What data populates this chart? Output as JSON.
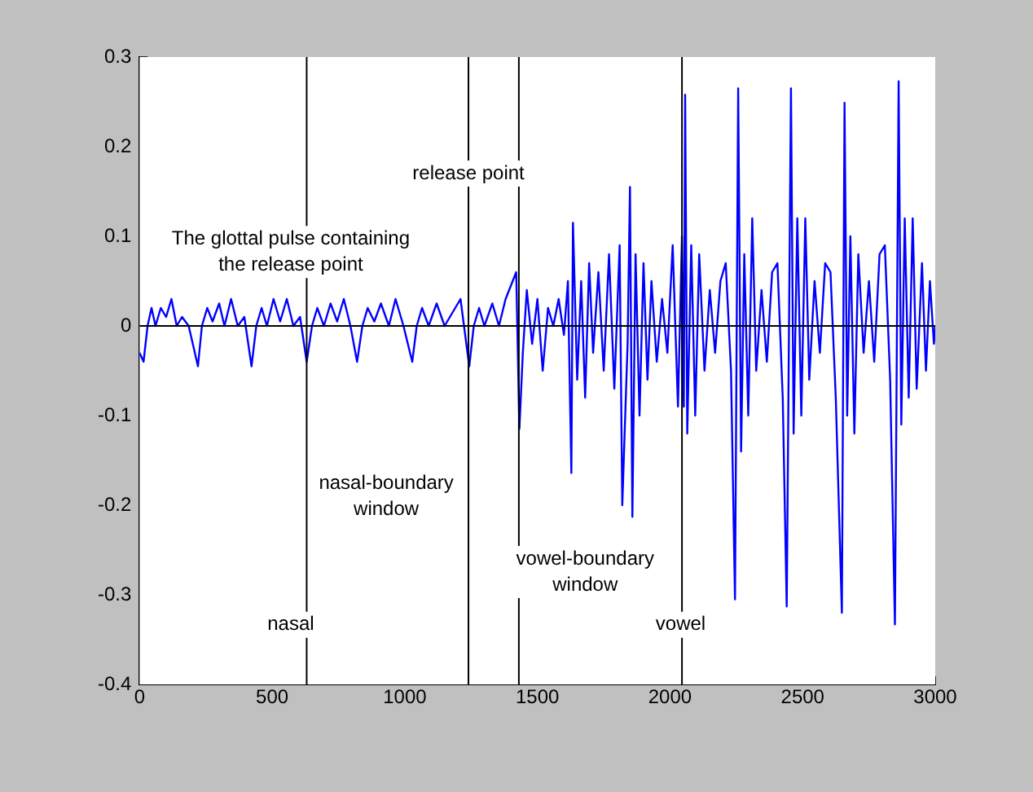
{
  "chart_data": {
    "type": "line",
    "xlim": [
      0,
      3000
    ],
    "ylim": [
      -0.4,
      0.3
    ],
    "xticks": [
      0,
      500,
      1000,
      1500,
      2000,
      2500,
      3000
    ],
    "yticks": [
      -0.4,
      -0.3,
      -0.2,
      -0.1,
      0,
      0.1,
      0.2,
      0.3
    ],
    "grid": false,
    "legend": false,
    "marker": "none",
    "line_style": "solid",
    "series": [
      {
        "color": "#0000ff",
        "x": [
          0,
          15,
          30,
          45,
          60,
          80,
          100,
          120,
          140,
          160,
          185,
          220,
          235,
          255,
          275,
          300,
          320,
          345,
          370,
          395,
          422,
          440,
          460,
          480,
          505,
          530,
          555,
          580,
          605,
          630,
          650,
          670,
          695,
          720,
          745,
          770,
          795,
          820,
          840,
          860,
          885,
          910,
          940,
          965,
          995,
          1028,
          1045,
          1065,
          1090,
          1120,
          1150,
          1180,
          1210,
          1243,
          1260,
          1280,
          1300,
          1330,
          1355,
          1380,
          1400,
          1420,
          1432,
          1445,
          1460,
          1480,
          1500,
          1520,
          1540,
          1560,
          1580,
          1600,
          1615,
          1628,
          1634,
          1650,
          1665,
          1680,
          1695,
          1710,
          1730,
          1750,
          1770,
          1790,
          1810,
          1820,
          1840,
          1849,
          1858,
          1870,
          1885,
          1900,
          1915,
          1930,
          1950,
          1970,
          1990,
          2010,
          2030,
          2045,
          2052,
          2057,
          2065,
          2080,
          2095,
          2110,
          2130,
          2150,
          2170,
          2190,
          2210,
          2230,
          2245,
          2257,
          2268,
          2280,
          2295,
          2310,
          2325,
          2345,
          2365,
          2385,
          2405,
          2425,
          2440,
          2456,
          2466,
          2480,
          2495,
          2510,
          2525,
          2545,
          2565,
          2585,
          2605,
          2625,
          2648,
          2658,
          2668,
          2680,
          2695,
          2710,
          2730,
          2750,
          2770,
          2790,
          2810,
          2830,
          2848,
          2862,
          2872,
          2885,
          2900,
          2915,
          2930,
          2950,
          2965,
          2980,
          2995,
          3000
        ],
        "values": [
          -0.03,
          -0.04,
          0.0,
          0.02,
          0.0,
          0.02,
          0.01,
          0.03,
          0.0,
          0.01,
          0.0,
          -0.045,
          0.0,
          0.02,
          0.005,
          0.025,
          0.0,
          0.03,
          0.0,
          0.01,
          -0.045,
          0.0,
          0.02,
          0.0,
          0.03,
          0.005,
          0.03,
          0.0,
          0.01,
          -0.04,
          0.0,
          0.02,
          0.0,
          0.025,
          0.005,
          0.03,
          0.0,
          -0.04,
          0.0,
          0.02,
          0.005,
          0.025,
          0.0,
          0.03,
          0.0,
          -0.04,
          0.0,
          0.02,
          0.0,
          0.025,
          0.0,
          0.015,
          0.03,
          -0.045,
          0.0,
          0.02,
          0.0,
          0.025,
          0.0,
          0.03,
          0.045,
          0.06,
          -0.115,
          -0.03,
          0.04,
          -0.02,
          0.03,
          -0.05,
          0.02,
          0.0,
          0.03,
          -0.01,
          0.05,
          -0.164,
          0.115,
          -0.06,
          0.05,
          -0.08,
          0.07,
          -0.03,
          0.06,
          -0.05,
          0.08,
          -0.07,
          0.09,
          -0.2,
          -0.02,
          0.155,
          -0.213,
          0.08,
          -0.1,
          0.07,
          -0.06,
          0.05,
          -0.04,
          0.03,
          -0.03,
          0.09,
          -0.09,
          0.1,
          -0.09,
          0.258,
          -0.12,
          0.09,
          -0.1,
          0.08,
          -0.05,
          0.04,
          -0.03,
          0.05,
          0.07,
          -0.05,
          -0.305,
          0.265,
          -0.14,
          0.08,
          -0.1,
          0.12,
          -0.05,
          0.04,
          -0.04,
          0.06,
          0.07,
          -0.08,
          -0.313,
          0.265,
          -0.12,
          0.12,
          -0.1,
          0.12,
          -0.06,
          0.05,
          -0.03,
          0.07,
          0.06,
          -0.08,
          -0.32,
          0.249,
          -0.1,
          0.1,
          -0.12,
          0.08,
          -0.03,
          0.05,
          -0.04,
          0.08,
          0.09,
          -0.06,
          -0.333,
          0.273,
          -0.11,
          0.12,
          -0.08,
          0.12,
          -0.07,
          0.07,
          -0.05,
          0.05,
          -0.02,
          0.0
        ]
      }
    ],
    "ref_lines": [
      {
        "axis": "y",
        "value": 0,
        "color": "#000000"
      },
      {
        "axis": "x",
        "value": 630,
        "color": "#000000"
      },
      {
        "axis": "x",
        "value": 1240,
        "color": "#000000"
      },
      {
        "axis": "x",
        "value": 1430,
        "color": "#000000"
      },
      {
        "axis": "x",
        "value": 2045,
        "color": "#000000"
      }
    ],
    "annotations": [
      {
        "text": "release point",
        "x": 1240,
        "y": 0.17
      },
      "The glottal pulse containing\nthe release point",
      "nasal-boundary\nwindow",
      "vowel-boundary\nwindow",
      "nasal",
      "vowel"
    ]
  }
}
